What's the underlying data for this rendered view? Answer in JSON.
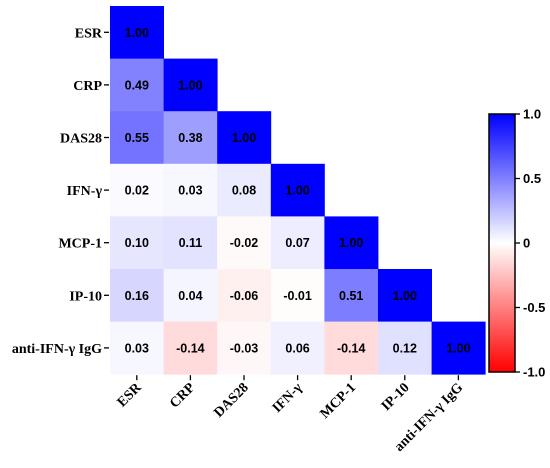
{
  "chart_data": {
    "type": "heatmap",
    "title": "",
    "variables": [
      "ESR",
      "CRP",
      "DAS28",
      "IFN-γ",
      "MCP-1",
      "IP-10",
      "anti-IFN-γ IgG"
    ],
    "matrix": [
      [
        1.0
      ],
      [
        0.49,
        1.0
      ],
      [
        0.55,
        0.38,
        1.0
      ],
      [
        0.02,
        0.03,
        0.08,
        1.0
      ],
      [
        0.1,
        0.11,
        -0.02,
        0.07,
        1.0
      ],
      [
        0.16,
        0.04,
        -0.06,
        -0.01,
        0.51,
        1.0
      ],
      [
        0.03,
        -0.14,
        -0.03,
        0.06,
        -0.14,
        0.12,
        1.0
      ]
    ],
    "value_labels": [
      [
        "1.00"
      ],
      [
        "0.49",
        "1.00"
      ],
      [
        "0.55",
        "0.38",
        "1.00"
      ],
      [
        "0.02",
        "0.03",
        "0.08",
        "1.00"
      ],
      [
        "0.10",
        "0.11",
        "-0.02",
        "0.07",
        "1.00"
      ],
      [
        "0.16",
        "0.04",
        "-0.06",
        "-0.01",
        "0.51",
        "1.00"
      ],
      [
        "0.03",
        "-0.14",
        "-0.03",
        "0.06",
        "-0.14",
        "0.12",
        "1.00"
      ]
    ],
    "colorbar": {
      "range": [
        -1.0,
        1.0
      ],
      "ticks": [
        1.0,
        0.5,
        0,
        -0.5,
        -1.0
      ],
      "tick_labels": [
        "1.0",
        "0.5",
        "0",
        "-0.5",
        "-1.0"
      ],
      "colors": {
        "negative": "#ff0000",
        "zero": "#ffffff",
        "positive": "#0000ff"
      }
    },
    "layout": "lower-triangle",
    "grid": false
  }
}
